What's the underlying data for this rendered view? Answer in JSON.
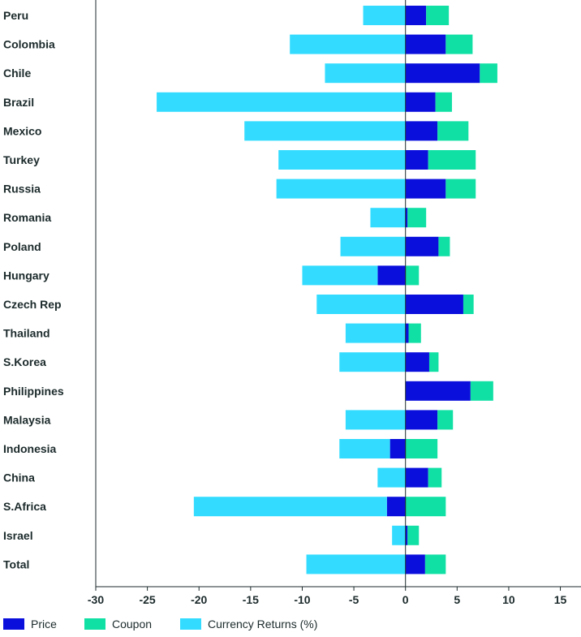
{
  "chart_data": {
    "type": "bar",
    "orientation": "horizontal",
    "stacked": true,
    "categories": [
      "Peru",
      "Colombia",
      "Chile",
      "Brazil",
      "Mexico",
      "Turkey",
      "Russia",
      "Romania",
      "Poland",
      "Hungary",
      "Czech Rep",
      "Thailand",
      "S.Korea",
      "Philippines",
      "Malaysia",
      "Indonesia",
      "China",
      "S.Africa",
      "Israel",
      "Total"
    ],
    "series": [
      {
        "name": "Price",
        "color": "#0a0fdc",
        "values": [
          2.0,
          3.9,
          7.2,
          2.9,
          3.1,
          2.2,
          3.9,
          0.2,
          3.2,
          -2.7,
          5.6,
          0.3,
          2.3,
          6.3,
          3.1,
          -1.5,
          2.2,
          -1.8,
          0.2,
          1.9
        ]
      },
      {
        "name": "Coupon",
        "color": "#10e0a4",
        "values": [
          2.2,
          2.6,
          1.7,
          1.6,
          3.0,
          4.6,
          2.9,
          1.8,
          1.1,
          1.3,
          1.0,
          1.2,
          0.9,
          2.2,
          1.5,
          3.1,
          1.3,
          3.9,
          1.1,
          2.0
        ]
      },
      {
        "name": "Currency Returns (%)",
        "color": "#33dcff",
        "values": [
          -4.1,
          -11.2,
          -7.8,
          -24.1,
          -15.6,
          -12.3,
          -12.5,
          -3.4,
          -6.3,
          -7.3,
          -8.6,
          -5.8,
          -6.4,
          0,
          -5.8,
          -4.9,
          -2.7,
          -18.7,
          -1.3,
          -9.6
        ]
      }
    ],
    "x_ticks": [
      -30,
      -25,
      -20,
      -15,
      -10,
      -5,
      0,
      5,
      10,
      15
    ],
    "xlim": [
      -30,
      17
    ],
    "grid": false,
    "legend_position": "bottom-left"
  }
}
